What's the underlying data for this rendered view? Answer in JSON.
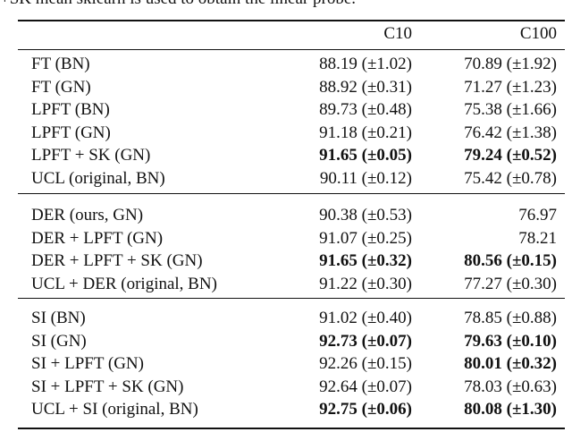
{
  "caption": "+SK mean sklearn is used to obtain the linear probe.",
  "table": {
    "columns": [
      "C10",
      "C100"
    ],
    "groups": [
      [
        {
          "label": "FT (BN)",
          "cells": [
            "88.19 (±1.02)",
            "70.89 (±1.92)"
          ],
          "bold": [
            false,
            false
          ]
        },
        {
          "label": "FT (GN)",
          "cells": [
            "88.92 (±0.31)",
            "71.27 (±1.23)"
          ],
          "bold": [
            false,
            false
          ]
        },
        {
          "label": "LPFT (BN)",
          "cells": [
            "89.73 (±0.48)",
            "75.38 (±1.66)"
          ],
          "bold": [
            false,
            false
          ]
        },
        {
          "label": "LPFT (GN)",
          "cells": [
            "91.18 (±0.21)",
            "76.42 (±1.38)"
          ],
          "bold": [
            false,
            false
          ]
        },
        {
          "label": "LPFT + SK (GN)",
          "cells": [
            "91.65 (±0.05)",
            "79.24 (±0.52)"
          ],
          "bold": [
            true,
            true
          ]
        },
        {
          "label": "UCL (original, BN)",
          "cells": [
            "90.11 (±0.12)",
            "75.42 (±0.78)"
          ],
          "bold": [
            false,
            false
          ]
        }
      ],
      [
        {
          "label": "DER (ours, GN)",
          "cells": [
            "90.38 (±0.53)",
            "76.97"
          ],
          "bold": [
            false,
            false
          ]
        },
        {
          "label": "DER + LPFT (GN)",
          "cells": [
            "91.07 (±0.25)",
            "78.21"
          ],
          "bold": [
            false,
            false
          ]
        },
        {
          "label": "DER + LPFT + SK (GN)",
          "cells": [
            "91.65 (±0.32)",
            "80.56 (±0.15)"
          ],
          "bold": [
            true,
            true
          ]
        },
        {
          "label": "UCL + DER (original, BN)",
          "cells": [
            "91.22 (±0.30)",
            "77.27 (±0.30)"
          ],
          "bold": [
            false,
            false
          ]
        }
      ],
      [
        {
          "label": "SI (BN)",
          "cells": [
            "91.02 (±0.40)",
            "78.85 (±0.88)"
          ],
          "bold": [
            false,
            false
          ]
        },
        {
          "label": "SI (GN)",
          "cells": [
            "92.73 (±0.07)",
            "79.63 (±0.10)"
          ],
          "bold": [
            true,
            true
          ]
        },
        {
          "label": "SI + LPFT (GN)",
          "cells": [
            "92.26 (±0.15)",
            "80.01 (±0.32)"
          ],
          "bold": [
            false,
            true
          ]
        },
        {
          "label": "SI + LPFT + SK (GN)",
          "cells": [
            "92.64 (±0.07)",
            "78.03 (±0.63)"
          ],
          "bold": [
            false,
            false
          ]
        },
        {
          "label": "UCL + SI (original, BN)",
          "cells": [
            "92.75 (±0.06)",
            "80.08 (±1.30)"
          ],
          "bold": [
            true,
            true
          ]
        }
      ]
    ]
  }
}
